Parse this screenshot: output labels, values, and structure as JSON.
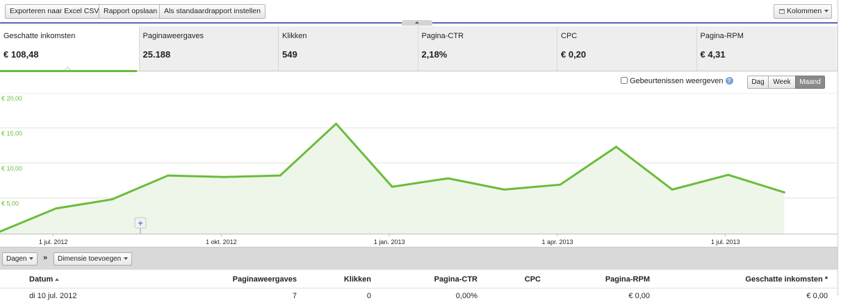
{
  "toolbar": {
    "export_label": "Exporteren naar Excel CSV",
    "save_label": "Rapport opslaan",
    "default_label": "Als standaardrapport instellen",
    "columns_label": "Kolommen"
  },
  "scorecards": [
    {
      "label": "Geschatte inkomsten",
      "value": "€ 108,48"
    },
    {
      "label": "Paginaweergaves",
      "value": "25.188"
    },
    {
      "label": "Klikken",
      "value": "549"
    },
    {
      "label": "Pagina-CTR",
      "value": "2,18%"
    },
    {
      "label": "CPC",
      "value": "€ 0,20"
    },
    {
      "label": "Pagina-RPM",
      "value": "€ 4,31"
    }
  ],
  "chart_controls": {
    "events_label": "Gebeurtenissen weergeven",
    "help_glyph": "?",
    "granularity": [
      "Dag",
      "Week",
      "Maand"
    ],
    "selected_granularity": "Maand"
  },
  "chart_data": {
    "type": "area",
    "series": [
      {
        "values": [
          0.2,
          3.5,
          4.8,
          8.2,
          8.0,
          8.2,
          15.6,
          6.6,
          7.8,
          6.2,
          6.9,
          12.3,
          6.2,
          8.3,
          5.8
        ]
      }
    ],
    "x_start_month": "jun. 2012",
    "x_tick_labels": [
      "1 jul. 2012",
      "1 okt. 2012",
      "1 jan. 2013",
      "1 apr. 2013",
      "1 jul. 2013"
    ],
    "y_tick_labels": [
      "€ 20,00",
      "€ 15,00",
      "€ 10,00",
      "€ 5,00"
    ],
    "ylim": [
      0,
      20
    ],
    "grid": true,
    "line_color": "#6abc3a",
    "fill_color": "#eef6e9",
    "annotation_glyph": "+"
  },
  "dimension_bar": {
    "period_label": "Dagen",
    "separator": "»",
    "add_dimension_label": "Dimensie toevoegen"
  },
  "table": {
    "headers": [
      "Datum",
      "Paginaweergaves",
      "Klikken",
      "Pagina-CTR",
      "CPC",
      "Pagina-RPM",
      "Geschatte inkomsten *"
    ],
    "rows": [
      [
        "di 10 jul. 2012",
        "7",
        "0",
        "0,00%",
        "",
        "€ 0,00",
        "€ 0,00"
      ]
    ]
  }
}
